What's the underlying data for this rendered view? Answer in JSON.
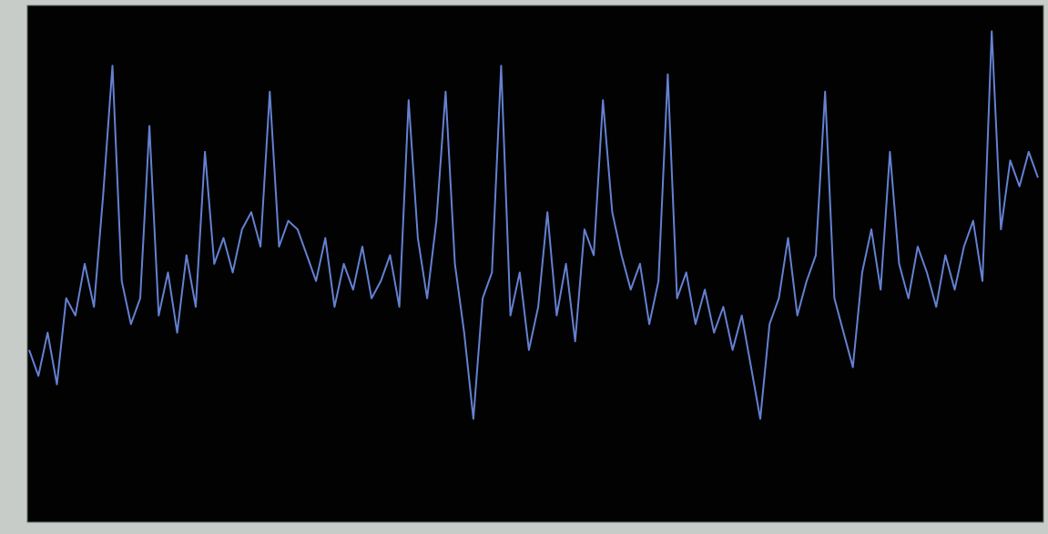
{
  "chart_data": {
    "type": "line",
    "color": "#6f8fe8",
    "ylim": [
      0,
      6
    ],
    "values": [
      2.0,
      1.7,
      2.2,
      1.6,
      2.6,
      2.4,
      3.0,
      2.5,
      3.8,
      5.3,
      2.8,
      2.3,
      2.6,
      4.6,
      2.4,
      2.9,
      2.2,
      3.1,
      2.5,
      4.3,
      3.0,
      3.3,
      2.9,
      3.4,
      3.6,
      3.2,
      5.0,
      3.2,
      3.5,
      3.4,
      3.1,
      2.8,
      3.3,
      2.5,
      3.0,
      2.7,
      3.2,
      2.6,
      2.8,
      3.1,
      2.5,
      4.9,
      3.3,
      2.6,
      3.5,
      5.0,
      3.0,
      2.2,
      1.2,
      2.6,
      2.9,
      5.3,
      2.4,
      2.9,
      2.0,
      2.5,
      3.6,
      2.4,
      3.0,
      2.1,
      3.4,
      3.1,
      4.9,
      3.6,
      3.1,
      2.7,
      3.0,
      2.3,
      2.8,
      5.2,
      2.6,
      2.9,
      2.3,
      2.7,
      2.2,
      2.5,
      2.0,
      2.4,
      1.8,
      1.2,
      2.3,
      2.6,
      3.3,
      2.4,
      2.8,
      3.1,
      5.0,
      2.6,
      2.2,
      1.8,
      2.9,
      3.4,
      2.7,
      4.3,
      3.0,
      2.6,
      3.2,
      2.9,
      2.5,
      3.1,
      2.7,
      3.2,
      3.5,
      2.8,
      5.7,
      3.4,
      4.2,
      3.9,
      4.3,
      4.0
    ]
  }
}
